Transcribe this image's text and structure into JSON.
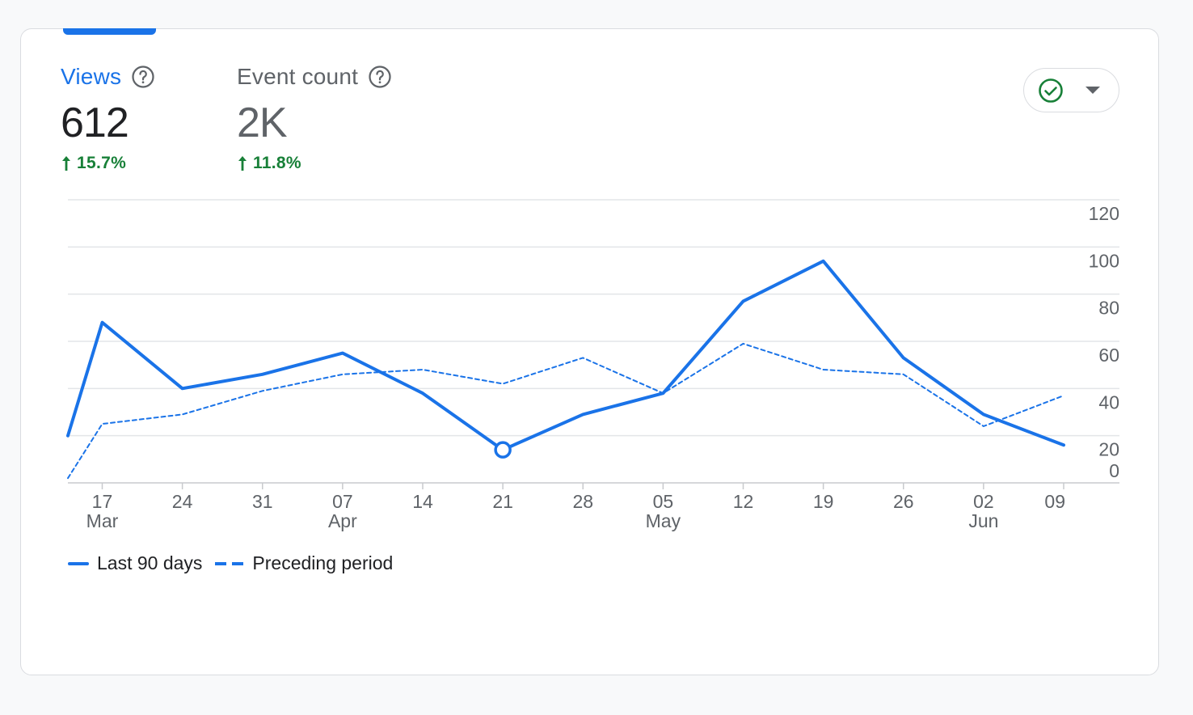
{
  "metrics": [
    {
      "label": "Views",
      "value": "612",
      "change": "15.7%",
      "selected": true
    },
    {
      "label": "Event count",
      "value": "2K",
      "change": "11.8%",
      "selected": false
    }
  ],
  "status_button": {
    "icon": "check-circle-icon",
    "caret": "arrow-drop-down-icon",
    "color": "#188038"
  },
  "colors": {
    "primary": "#1a73e8",
    "positive": "#188038"
  },
  "legend": {
    "current": "Last 90 days",
    "previous": "Preceding period"
  },
  "chart_data": {
    "type": "line",
    "grid": true,
    "ylim": [
      0,
      120
    ],
    "yticks": [
      "120",
      "100",
      "80",
      "60",
      "40",
      "20",
      "0"
    ],
    "xticks": [
      {
        "day": "17",
        "month": "Mar"
      },
      {
        "day": "24",
        "month": ""
      },
      {
        "day": "31",
        "month": ""
      },
      {
        "day": "07",
        "month": "Apr"
      },
      {
        "day": "14",
        "month": ""
      },
      {
        "day": "21",
        "month": ""
      },
      {
        "day": "28",
        "month": ""
      },
      {
        "day": "05",
        "month": "May"
      },
      {
        "day": "12",
        "month": ""
      },
      {
        "day": "19",
        "month": ""
      },
      {
        "day": "26",
        "month": ""
      },
      {
        "day": "02",
        "month": "Jun"
      },
      {
        "day": "09",
        "month": ""
      }
    ],
    "series": [
      {
        "name": "Last 90 days",
        "style": "solid",
        "color": "#1a73e8",
        "points": [
          {
            "x": "2024-03-14",
            "y": 20
          },
          {
            "x": "2024-03-17",
            "y": 68
          },
          {
            "x": "2024-03-24",
            "y": 40
          },
          {
            "x": "2024-03-31",
            "y": 46
          },
          {
            "x": "2024-04-07",
            "y": 55
          },
          {
            "x": "2024-04-14",
            "y": 38
          },
          {
            "x": "2024-04-21",
            "y": 14
          },
          {
            "x": "2024-04-28",
            "y": 29
          },
          {
            "x": "2024-05-05",
            "y": 38
          },
          {
            "x": "2024-05-12",
            "y": 77
          },
          {
            "x": "2024-05-19",
            "y": 94
          },
          {
            "x": "2024-05-26",
            "y": 53
          },
          {
            "x": "2024-06-02",
            "y": 29
          },
          {
            "x": "2024-06-09",
            "y": 16
          }
        ],
        "highlight_x": "2024-04-21"
      },
      {
        "name": "Preceding period",
        "style": "dashed",
        "color": "#1a73e8",
        "points": [
          {
            "x": "2024-03-14",
            "y": 2
          },
          {
            "x": "2024-03-17",
            "y": 25
          },
          {
            "x": "2024-03-24",
            "y": 29
          },
          {
            "x": "2024-03-31",
            "y": 39
          },
          {
            "x": "2024-04-07",
            "y": 46
          },
          {
            "x": "2024-04-14",
            "y": 48
          },
          {
            "x": "2024-04-21",
            "y": 42
          },
          {
            "x": "2024-04-28",
            "y": 53
          },
          {
            "x": "2024-05-05",
            "y": 38
          },
          {
            "x": "2024-05-12",
            "y": 59
          },
          {
            "x": "2024-05-19",
            "y": 48
          },
          {
            "x": "2024-05-26",
            "y": 46
          },
          {
            "x": "2024-06-02",
            "y": 24
          },
          {
            "x": "2024-06-09",
            "y": 37
          }
        ]
      }
    ]
  }
}
